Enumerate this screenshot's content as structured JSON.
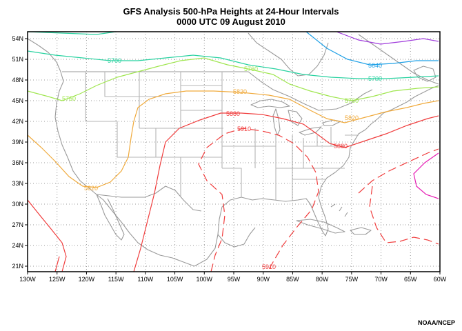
{
  "title_line1": "GFS Analysis 500-hPa Heights at 24-Hour Intervals",
  "title_line2": "0000 UTC 09 August 2010",
  "credit": "NOAA/NCEP",
  "lat_labels": [
    "54N",
    "51N",
    "48N",
    "45N",
    "42N",
    "39N",
    "36N",
    "33N",
    "30N",
    "27N",
    "24N",
    "21N"
  ],
  "lon_labels": [
    "130W",
    "125W",
    "120W",
    "115W",
    "110W",
    "105W",
    "100W",
    "95W",
    "90W",
    "85W",
    "80W",
    "75W",
    "70W",
    "65W",
    "60W"
  ],
  "colors": {
    "c5580": "#a03cdc",
    "c5640": "#1ea0e6",
    "c5700": "#28d2a0",
    "c5760": "#a0e650",
    "c5820": "#f0aa3c",
    "c5880": "#f03c3c",
    "c5910": "#f03c3c",
    "magenta": "#e61eb4",
    "coast": "#999999",
    "grid": "#999999"
  },
  "contour_labels": {
    "c5700_a": "5700",
    "c5700_b": "5700",
    "c5640": "5640",
    "c5760_a": "5760",
    "c5760_b": "5760",
    "c5760_c": "5760",
    "c5820_a": "5820",
    "c5820_b": "5820",
    "c5820_c": "5820",
    "c5880_a": "5880",
    "c5880_b": "5880",
    "c5910_a": "5910",
    "c5910_b": "5910"
  }
}
